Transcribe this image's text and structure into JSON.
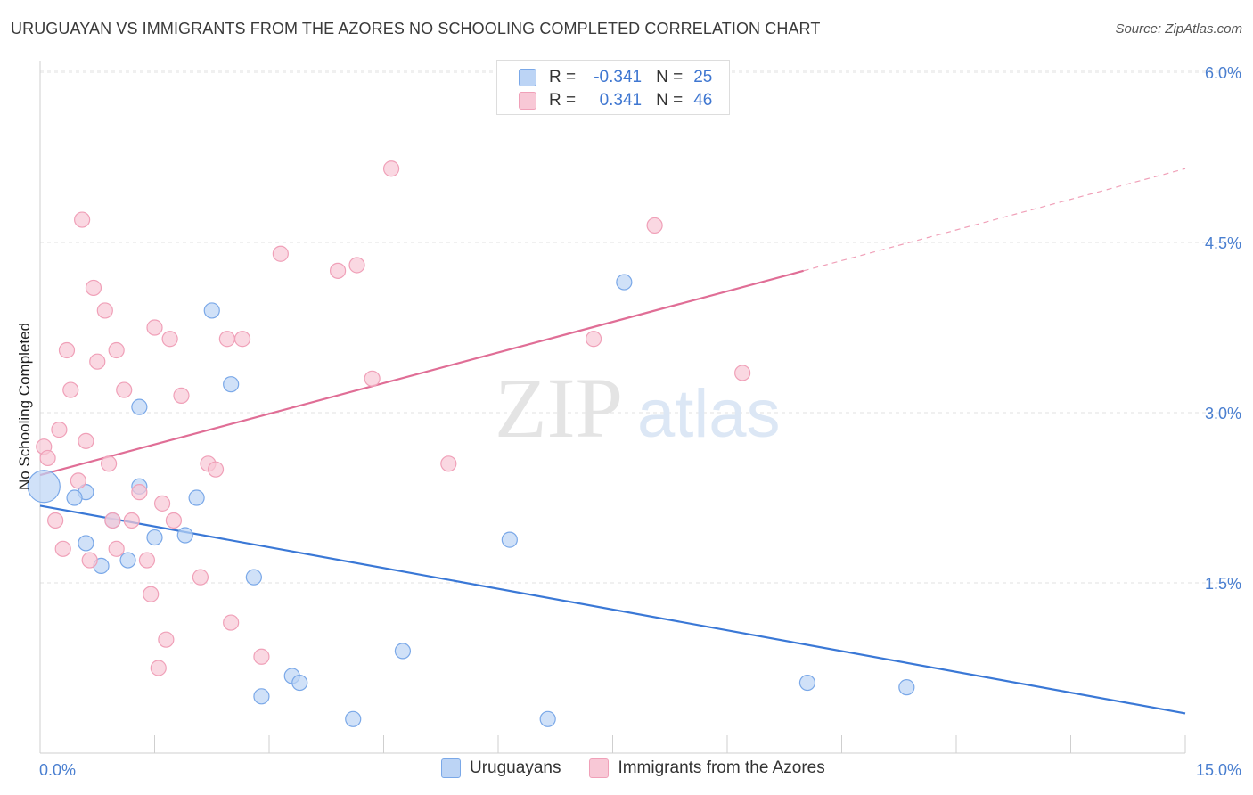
{
  "header": {
    "title": "URUGUAYAN VS IMMIGRANTS FROM THE AZORES NO SCHOOLING COMPLETED CORRELATION CHART",
    "source": "Source: ZipAtlas.com"
  },
  "watermark": {
    "zip": "ZIP",
    "atlas": "atlas"
  },
  "legend": {
    "rows": [
      {
        "r_label": "R =",
        "r_value": "-0.341",
        "n_label": "N =",
        "n_value": "25"
      },
      {
        "r_label": "R =",
        "r_value": "0.341",
        "n_label": "N =",
        "n_value": "46"
      }
    ]
  },
  "chart_data": {
    "type": "scatter",
    "title": "URUGUAYAN VS IMMIGRANTS FROM THE AZORES NO SCHOOLING COMPLETED CORRELATION CHART",
    "xlabel": "",
    "ylabel": "No Schooling Completed",
    "xlim": [
      0,
      15
    ],
    "ylim": [
      0,
      6.2
    ],
    "x_ticks_labeled": [
      "0.0%",
      "15.0%"
    ],
    "y_ticks": [
      1.5,
      3.0,
      4.5,
      6.0
    ],
    "y_tick_labels": [
      "1.5%",
      "3.0%",
      "4.5%",
      "6.0%"
    ],
    "grid": true,
    "series": [
      {
        "name": "Uruguayans",
        "color": "#7aa8e8",
        "fill": "#bcd4f5",
        "r": "-0.341",
        "n": "25",
        "points": [
          [
            0.05,
            2.35
          ],
          [
            0.6,
            2.3
          ],
          [
            0.45,
            2.25
          ],
          [
            0.95,
            2.05
          ],
          [
            0.6,
            1.85
          ],
          [
            0.8,
            1.65
          ],
          [
            1.15,
            1.7
          ],
          [
            1.3,
            2.35
          ],
          [
            1.5,
            1.9
          ],
          [
            1.9,
            1.92
          ],
          [
            2.05,
            2.25
          ],
          [
            1.3,
            3.05
          ],
          [
            2.25,
            3.9
          ],
          [
            2.5,
            3.25
          ],
          [
            2.8,
            1.55
          ],
          [
            2.9,
            0.5
          ],
          [
            3.3,
            0.68
          ],
          [
            3.4,
            0.62
          ],
          [
            4.1,
            0.3
          ],
          [
            4.75,
            0.9
          ],
          [
            6.15,
            1.88
          ],
          [
            6.65,
            0.3
          ],
          [
            7.65,
            4.15
          ],
          [
            10.05,
            0.62
          ],
          [
            11.35,
            0.58
          ]
        ],
        "trend": {
          "x0": 0,
          "y0": 2.18,
          "x1": 15,
          "y1": 0.35
        }
      },
      {
        "name": "Immigrants from the Azores",
        "color": "#f0a0b8",
        "fill": "#f8c8d6",
        "r": "0.341",
        "n": "46",
        "points": [
          [
            0.05,
            2.7
          ],
          [
            0.1,
            2.6
          ],
          [
            0.2,
            2.05
          ],
          [
            0.25,
            2.85
          ],
          [
            0.3,
            1.8
          ],
          [
            0.35,
            3.55
          ],
          [
            0.4,
            3.2
          ],
          [
            0.5,
            2.4
          ],
          [
            0.55,
            4.7
          ],
          [
            0.6,
            2.75
          ],
          [
            0.65,
            1.7
          ],
          [
            0.7,
            4.1
          ],
          [
            0.75,
            3.45
          ],
          [
            0.85,
            3.9
          ],
          [
            0.9,
            2.55
          ],
          [
            0.95,
            2.05
          ],
          [
            1.0,
            1.8
          ],
          [
            1.0,
            3.55
          ],
          [
            1.1,
            3.2
          ],
          [
            1.2,
            2.05
          ],
          [
            1.3,
            2.3
          ],
          [
            1.4,
            1.7
          ],
          [
            1.45,
            1.4
          ],
          [
            1.5,
            3.75
          ],
          [
            1.55,
            0.75
          ],
          [
            1.6,
            2.2
          ],
          [
            1.65,
            1.0
          ],
          [
            1.7,
            3.65
          ],
          [
            1.75,
            2.05
          ],
          [
            1.85,
            3.15
          ],
          [
            2.1,
            1.55
          ],
          [
            2.2,
            2.55
          ],
          [
            2.3,
            2.5
          ],
          [
            2.45,
            3.65
          ],
          [
            2.5,
            1.15
          ],
          [
            2.65,
            3.65
          ],
          [
            2.9,
            0.85
          ],
          [
            3.15,
            4.4
          ],
          [
            3.9,
            4.25
          ],
          [
            4.15,
            4.3
          ],
          [
            4.35,
            3.3
          ],
          [
            4.6,
            5.15
          ],
          [
            5.35,
            2.55
          ],
          [
            7.25,
            3.65
          ],
          [
            8.05,
            4.65
          ],
          [
            9.2,
            3.35
          ]
        ],
        "trend": {
          "x0": 0,
          "y0": 2.45,
          "x1": 10,
          "y1": 4.25,
          "dashed_to_x": 15,
          "dashed_to_y": 5.15
        }
      }
    ]
  },
  "bottom_legend": {
    "items": [
      {
        "label": "Uruguayans"
      },
      {
        "label": "Immigrants from the Azores"
      }
    ]
  }
}
